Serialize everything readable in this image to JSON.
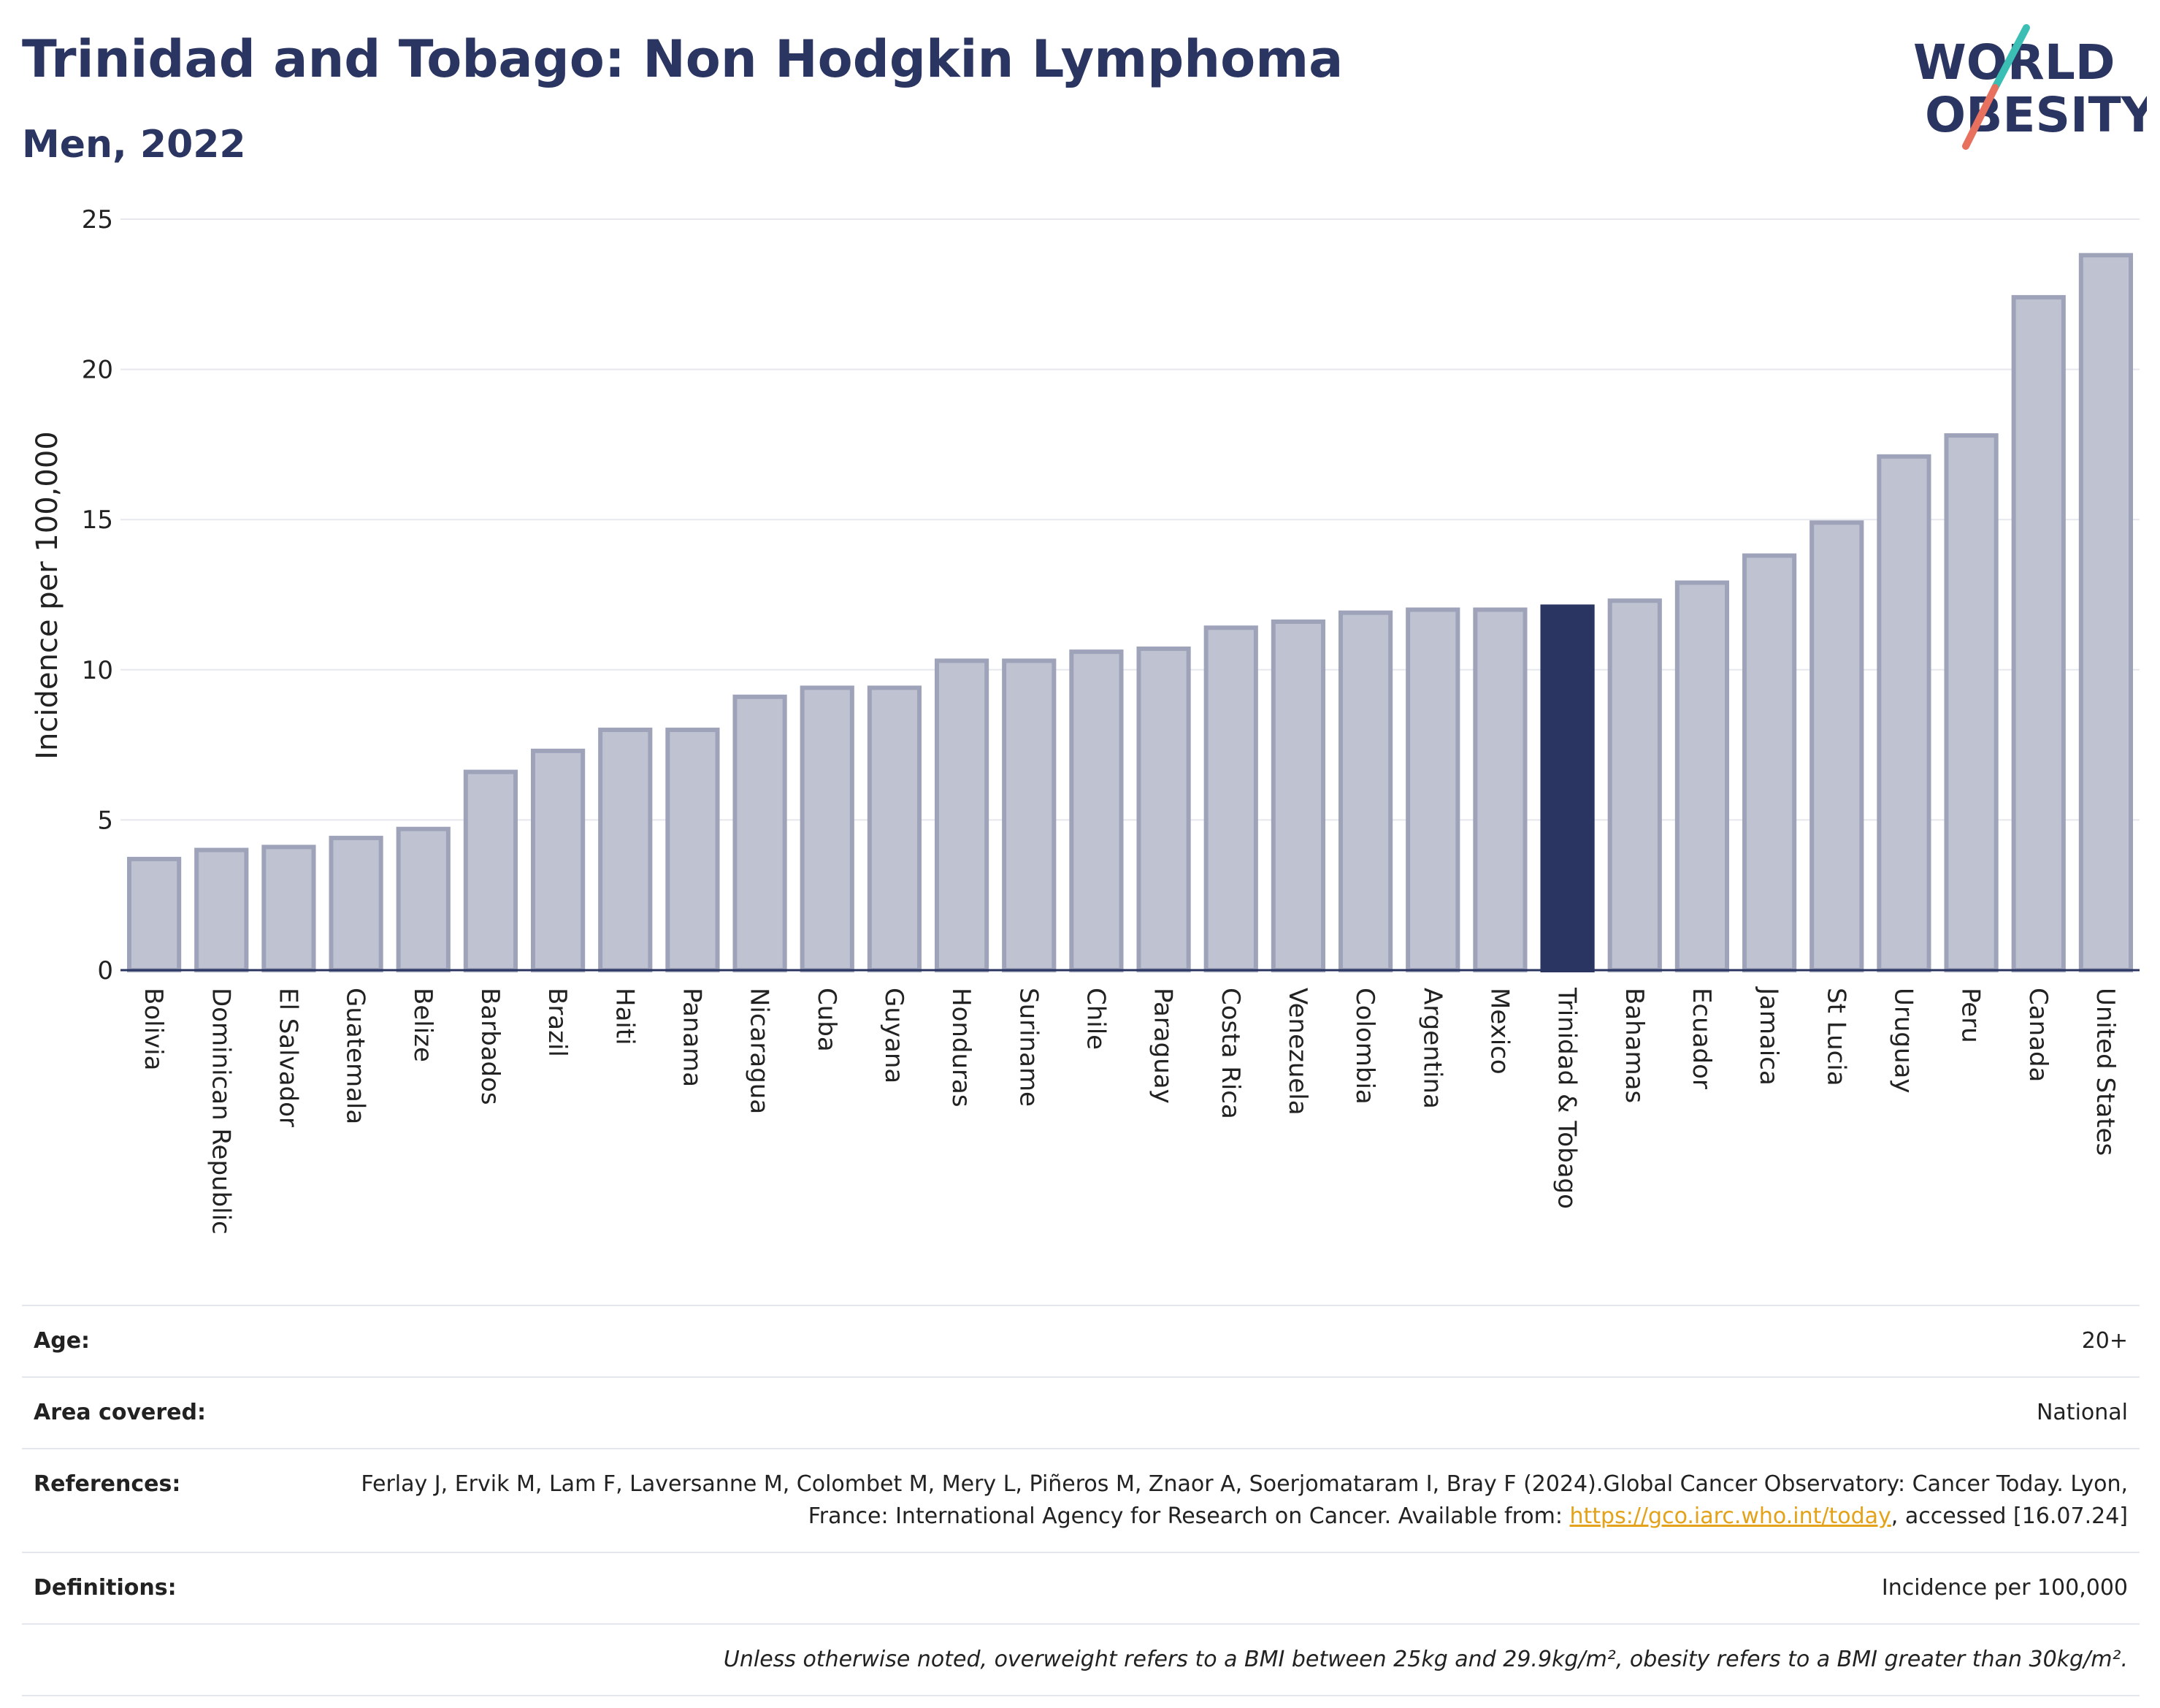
{
  "header": {
    "title": "Trinidad and Tobago: Non Hodgkin Lymphoma",
    "subtitle": "Men, 2022",
    "logo": {
      "line1": "WORLD",
      "line2": "OBESITY"
    }
  },
  "chart_data": {
    "type": "bar",
    "ylabel": "Incidence per 100,000",
    "ylim": [
      0,
      25
    ],
    "yticks": [
      0,
      5,
      10,
      15,
      20,
      25
    ],
    "grid": true,
    "highlight": "Trinidad & Tobago",
    "categories": [
      "Bolivia",
      "Dominican Republic",
      "El Salvador",
      "Guatemala",
      "Belize",
      "Barbados",
      "Brazil",
      "Haiti",
      "Panama",
      "Nicaragua",
      "Cuba",
      "Guyana",
      "Honduras",
      "Suriname",
      "Chile",
      "Paraguay",
      "Costa Rica",
      "Venezuela",
      "Colombia",
      "Argentina",
      "Mexico",
      "Trinidad & Tobago",
      "Bahamas",
      "Ecuador",
      "Jamaica",
      "St Lucia",
      "Uruguay",
      "Peru",
      "Canada",
      "United States"
    ],
    "values": [
      3.7,
      4.0,
      4.1,
      4.4,
      4.7,
      6.6,
      7.3,
      8.0,
      8.0,
      9.1,
      9.4,
      9.4,
      10.3,
      10.3,
      10.6,
      10.7,
      11.4,
      11.6,
      11.9,
      12.0,
      12.0,
      12.1,
      12.3,
      12.9,
      13.8,
      14.9,
      17.1,
      17.8,
      22.4,
      23.8
    ]
  },
  "colors": {
    "bar": "#bfc3d1",
    "bar_border": "#9ea3ba",
    "highlight": "#2b3561",
    "accent_teal": "#3bbfb5",
    "accent_coral": "#e8705e",
    "link": "#e3a21a"
  },
  "info": {
    "age_label": "Age:",
    "age_value": "20+",
    "area_label": "Area covered:",
    "area_value": "National",
    "references_label": "References:",
    "references_text": "Ferlay J, Ervik M, Lam F, Laversanne M, Colombet M, Mery L, Piñeros M, Znaor A, Soerjomataram I, Bray F (2024).Global Cancer Observatory: Cancer Today. Lyon, France: International Agency for Research on Cancer. Available from:",
    "references_link": "https://gco.iarc.who.int/today",
    "references_suffix": ", accessed [16.07.24]",
    "definitions_label": "Definitions:",
    "definitions_value": "Incidence per 100,000",
    "note": "Unless otherwise noted, overweight refers to a BMI between 25kg and 29.9kg/m², obesity refers to a BMI greater than 30kg/m²."
  }
}
